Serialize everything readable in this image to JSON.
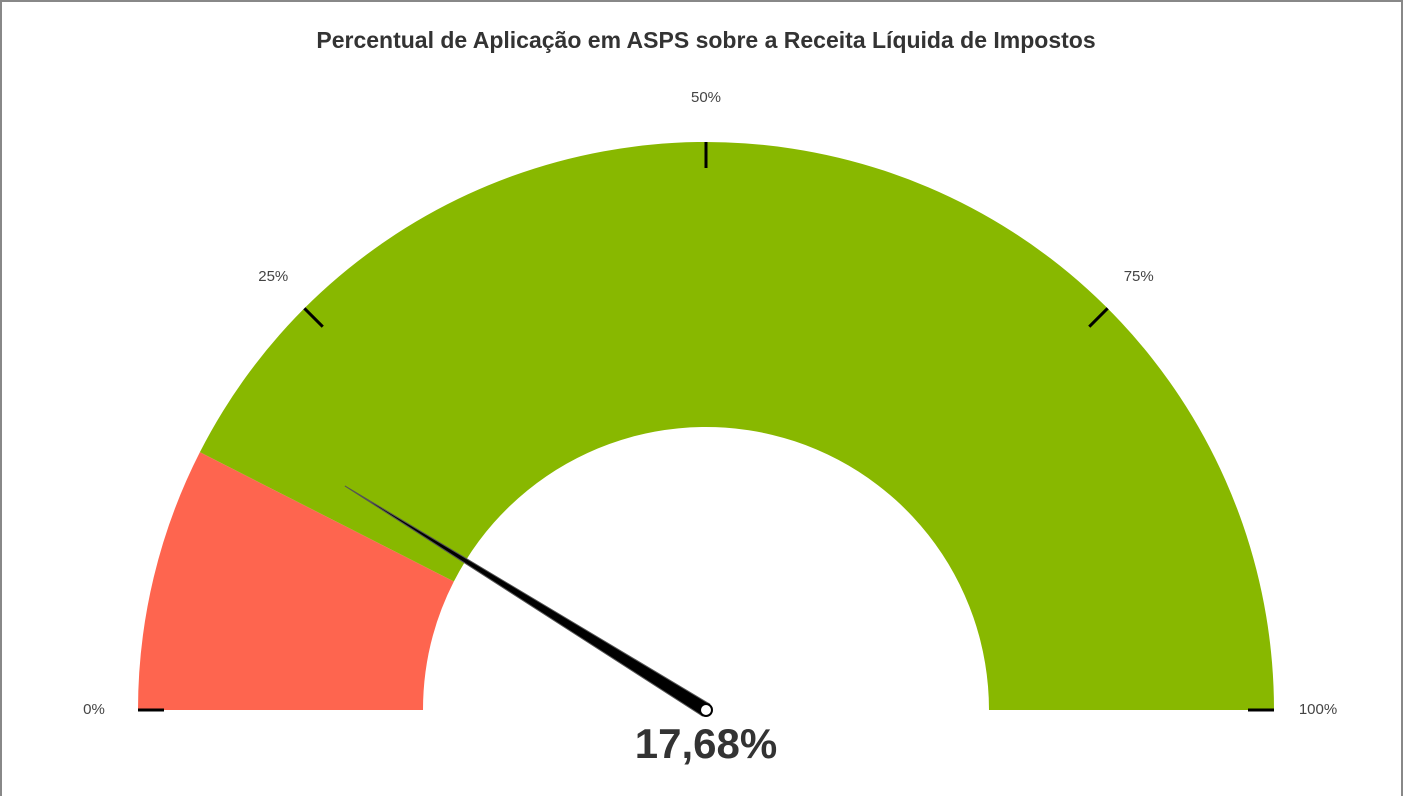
{
  "chart_data": {
    "type": "gauge",
    "title": "Percentual de Aplicação em ASPS sobre a Receita Líquida de Impostos",
    "value": 17.68,
    "value_label": "17,68%",
    "xlim": [
      0,
      100
    ],
    "xticks": [
      {
        "value": 0,
        "label": "0%"
      },
      {
        "value": 25,
        "label": "25%"
      },
      {
        "value": 50,
        "label": "50%"
      },
      {
        "value": 75,
        "label": "75%"
      },
      {
        "value": 100,
        "label": "100%"
      }
    ],
    "bands": [
      {
        "from": 0,
        "to": 15,
        "color": "#fe654f"
      },
      {
        "from": 15,
        "to": 100,
        "color": "#88b800"
      }
    ],
    "needle_color": "#000000"
  }
}
